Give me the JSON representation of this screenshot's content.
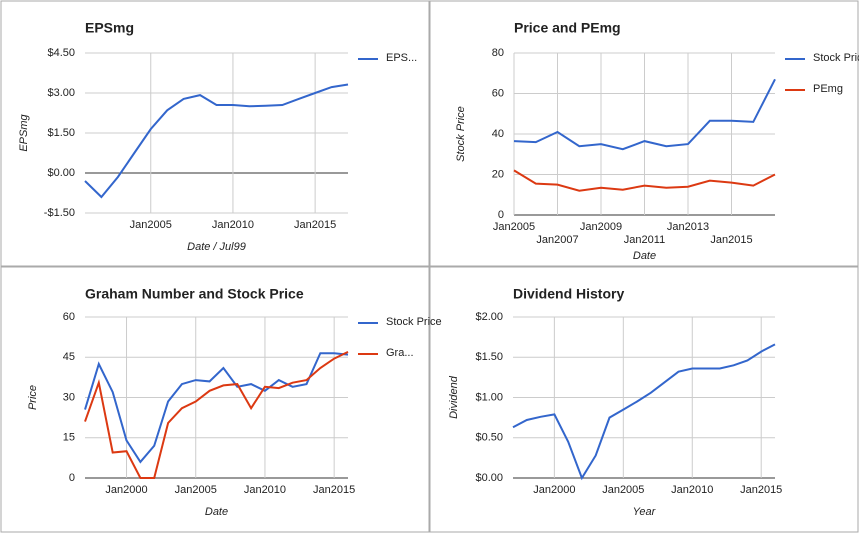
{
  "chart_data": [
    {
      "type": "line",
      "title": "EPSmg",
      "x_label": "Date / Jul99",
      "y_label": "EPSmg",
      "legend": "right",
      "grid": true,
      "x": [
        2001,
        2002,
        2003,
        2004,
        2005,
        2006,
        2007,
        2008,
        2009,
        2010,
        2011,
        2012,
        2013,
        2014,
        2015,
        2016,
        2017
      ],
      "series": [
        {
          "name": "EPS...",
          "color": "#3366cc",
          "values": [
            -0.3,
            -0.9,
            -0.15,
            0.75,
            1.65,
            2.35,
            2.78,
            2.92,
            2.55,
            2.55,
            2.5,
            2.52,
            2.55,
            2.78,
            3.0,
            3.22,
            3.32
          ]
        }
      ],
      "xlim": [
        2001,
        2017
      ],
      "xticks": [
        {
          "value": 2005,
          "label": "Jan2005"
        },
        {
          "value": 2010,
          "label": "Jan2010"
        },
        {
          "value": 2015,
          "label": "Jan2015"
        }
      ],
      "ylim": [
        -1.5,
        4.5
      ],
      "yticks": [
        {
          "value": -1.5,
          "label": "-$1.50"
        },
        {
          "value": 0,
          "label": "$0.00"
        },
        {
          "value": 1.5,
          "label": "$1.50"
        },
        {
          "value": 3,
          "label": "$3.00"
        },
        {
          "value": 4.5,
          "label": "$4.50"
        }
      ]
    },
    {
      "type": "line",
      "title": "Price and PEmg",
      "x_label": "Date",
      "y_label": "Stock Price",
      "legend": "right",
      "grid": true,
      "x": [
        2005,
        2006,
        2007,
        2008,
        2009,
        2010,
        2011,
        2012,
        2013,
        2014,
        2015,
        2016,
        2017
      ],
      "series": [
        {
          "name": "Stock Price",
          "color": "#3366cc",
          "values": [
            36.5,
            36,
            41,
            34,
            35,
            32.5,
            36.5,
            34,
            35,
            46.5,
            46.5,
            46,
            67
          ]
        },
        {
          "name": "PEmg",
          "color": "#dc3912",
          "values": [
            22,
            15.5,
            15,
            12,
            13.5,
            12.5,
            14.5,
            13.5,
            14,
            17,
            16,
            14.5,
            20
          ]
        }
      ],
      "xlim": [
        2005,
        2017
      ],
      "xticks": [
        {
          "value": 2005,
          "label": "Jan2005"
        },
        {
          "value": 2007,
          "label": "Jan2007"
        },
        {
          "value": 2009,
          "label": "Jan2009"
        },
        {
          "value": 2011,
          "label": "Jan2011"
        },
        {
          "value": 2013,
          "label": "Jan2013"
        },
        {
          "value": 2015,
          "label": "Jan2015"
        }
      ],
      "ylim": [
        0,
        80
      ],
      "yticks": [
        0,
        20,
        40,
        60,
        80
      ]
    },
    {
      "type": "line",
      "title": "Graham Number and Stock Price",
      "x_label": "Date",
      "y_label": "Price",
      "legend": "right",
      "grid": true,
      "x": [
        1997,
        1998,
        1999,
        2000,
        2001,
        2002,
        2003,
        2004,
        2005,
        2006,
        2007,
        2008,
        2009,
        2010,
        2011,
        2012,
        2013,
        2014,
        2015,
        2016
      ],
      "series": [
        {
          "name": "Stock Price",
          "color": "#3366cc",
          "values": [
            25.5,
            42.5,
            32,
            14,
            6,
            12,
            28.5,
            35,
            36.5,
            36,
            41,
            34,
            35,
            32.5,
            36.5,
            34,
            35,
            46.5,
            46.5,
            46
          ]
        },
        {
          "name": "Gra...",
          "color": "#dc3912",
          "values": [
            21,
            35.5,
            9.5,
            10,
            0,
            0,
            20.5,
            26,
            28.5,
            32.5,
            34.5,
            35,
            26,
            34,
            33.5,
            35.5,
            36.5,
            41,
            44.5,
            47
          ]
        }
      ],
      "xlim": [
        1997,
        2016
      ],
      "xticks": [
        {
          "value": 2000,
          "label": "Jan2000"
        },
        {
          "value": 2005,
          "label": "Jan2005"
        },
        {
          "value": 2010,
          "label": "Jan2010"
        },
        {
          "value": 2015,
          "label": "Jan2015"
        }
      ],
      "ylim": [
        0,
        60
      ],
      "yticks": [
        0,
        15,
        30,
        45,
        60
      ]
    },
    {
      "type": "line",
      "title": "Dividend History",
      "x_label": "Year",
      "y_label": "Dividend",
      "grid": true,
      "x": [
        1997,
        1998,
        1999,
        2000,
        2001,
        2002,
        2003,
        2004,
        2005,
        2006,
        2007,
        2008,
        2009,
        2010,
        2011,
        2012,
        2013,
        2014,
        2015,
        2016
      ],
      "series": [
        {
          "color": "#3366cc",
          "values": [
            0.63,
            0.72,
            0.76,
            0.79,
            0.45,
            0.0,
            0.28,
            0.75,
            0.85,
            0.95,
            1.06,
            1.19,
            1.32,
            1.36,
            1.36,
            1.36,
            1.4,
            1.46,
            1.57,
            1.66
          ]
        }
      ],
      "xlim": [
        1997,
        2016
      ],
      "xticks": [
        {
          "value": 2000,
          "label": "Jan2000"
        },
        {
          "value": 2005,
          "label": "Jan2005"
        },
        {
          "value": 2010,
          "label": "Jan2010"
        },
        {
          "value": 2015,
          "label": "Jan2015"
        }
      ],
      "ylim": [
        0,
        2
      ],
      "yticks": [
        {
          "value": 0,
          "label": "$0.00"
        },
        {
          "value": 0.5,
          "label": "$0.50"
        },
        {
          "value": 1,
          "label": "$1.00"
        },
        {
          "value": 1.5,
          "label": "$1.50"
        },
        {
          "value": 2,
          "label": "$2.00"
        }
      ]
    }
  ]
}
